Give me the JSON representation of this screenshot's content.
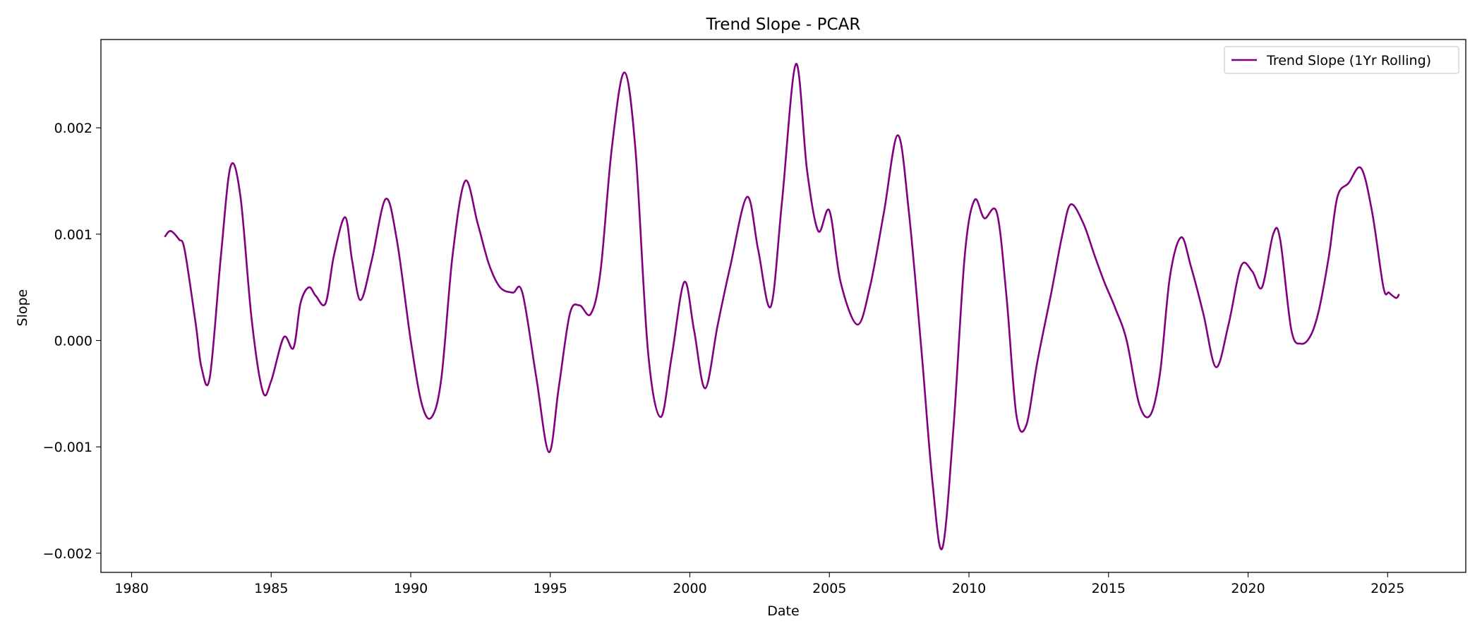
{
  "chart_data": {
    "type": "line",
    "title": "Trend Slope - PCAR",
    "xlabel": "Date",
    "ylabel": "Slope",
    "xlim": [
      1978.9,
      2027.8
    ],
    "ylim": [
      -0.00218,
      0.00283
    ],
    "grid": false,
    "legend_position": "top-right",
    "x_ticks": [
      1980,
      1985,
      1990,
      1995,
      2000,
      2005,
      2010,
      2015,
      2020,
      2025
    ],
    "x_tick_labels": [
      "1980",
      "1985",
      "1990",
      "1995",
      "2000",
      "2005",
      "2010",
      "2015",
      "2020",
      "2025"
    ],
    "y_ticks": [
      -0.002,
      -0.001,
      0.0,
      0.001,
      0.002
    ],
    "y_tick_labels": [
      "−0.002",
      "−0.001",
      "0.000",
      "0.001",
      "0.002"
    ],
    "series": [
      {
        "name": "Trend Slope (1Yr Rolling)",
        "color": "#800080",
        "x": [
          1981.2,
          1981.4,
          1981.7,
          1981.9,
          1982.3,
          1982.5,
          1982.8,
          1983.2,
          1983.55,
          1983.9,
          1984.3,
          1984.7,
          1985.0,
          1985.45,
          1985.8,
          1986.05,
          1986.35,
          1986.6,
          1986.95,
          1987.25,
          1987.65,
          1987.9,
          1988.2,
          1988.6,
          1989.1,
          1989.5,
          1990.0,
          1990.4,
          1990.75,
          1991.1,
          1991.5,
          1991.95,
          1992.4,
          1992.8,
          1993.2,
          1993.65,
          1994.0,
          1994.5,
          1994.95,
          1995.3,
          1995.7,
          1996.05,
          1996.45,
          1996.8,
          1997.2,
          1997.65,
          1998.05,
          1998.5,
          1998.95,
          1999.35,
          1999.8,
          2000.15,
          2000.55,
          2001.0,
          2001.45,
          2002.05,
          2002.45,
          2002.9,
          2003.3,
          2003.8,
          2004.2,
          2004.6,
          2005.0,
          2005.4,
          2006.0,
          2006.45,
          2006.95,
          2007.45,
          2007.85,
          2008.3,
          2008.7,
          2009.05,
          2009.45,
          2009.85,
          2010.2,
          2010.55,
          2011.0,
          2011.35,
          2011.7,
          2012.05,
          2012.45,
          2012.95,
          2013.35,
          2013.65,
          2014.1,
          2014.5,
          2014.85,
          2015.25,
          2015.65,
          2016.1,
          2016.5,
          2016.85,
          2017.2,
          2017.6,
          2017.95,
          2018.4,
          2018.85,
          2019.3,
          2019.75,
          2020.15,
          2020.5,
          2020.9,
          2021.15,
          2021.55,
          2021.9,
          2022.25,
          2022.55,
          2022.9,
          2023.2,
          2023.6,
          2024.05,
          2024.45,
          2024.85,
          2025.05,
          2025.3,
          2025.4
        ],
        "y": [
          0.00098,
          0.00103,
          0.00095,
          0.00085,
          0.00015,
          -0.00025,
          -0.00035,
          0.0008,
          0.00164,
          0.00135,
          0.0002,
          -0.00048,
          -0.00038,
          3e-05,
          -7e-05,
          0.00035,
          0.0005,
          0.00042,
          0.00035,
          0.0008,
          0.00116,
          0.00075,
          0.00038,
          0.00075,
          0.00133,
          0.00095,
          0.0,
          -0.0006,
          -0.00072,
          -0.00035,
          0.0008,
          0.0015,
          0.0011,
          0.00072,
          0.0005,
          0.00045,
          0.00045,
          -0.00035,
          -0.00105,
          -0.00045,
          0.00025,
          0.00033,
          0.00025,
          0.00065,
          0.0018,
          0.00252,
          0.0018,
          -0.0001,
          -0.00072,
          -0.00015,
          0.00055,
          0.0001,
          -0.00045,
          0.00015,
          0.0007,
          0.00135,
          0.00085,
          0.00032,
          0.0013,
          0.0026,
          0.0016,
          0.00103,
          0.00122,
          0.00055,
          0.00015,
          0.0005,
          0.0012,
          0.00193,
          0.0012,
          -0.0001,
          -0.00135,
          -0.00195,
          -0.0008,
          0.0008,
          0.00132,
          0.00115,
          0.0012,
          0.0004,
          -0.0007,
          -0.0008,
          -0.0002,
          0.00045,
          0.001,
          0.00128,
          0.0011,
          0.0008,
          0.00055,
          0.0003,
          0.0,
          -0.0006,
          -0.0007,
          -0.0003,
          0.0006,
          0.00097,
          0.0007,
          0.00025,
          -0.00025,
          0.00015,
          0.0007,
          0.00065,
          0.0005,
          0.001,
          0.00095,
          0.0001,
          -3e-05,
          5e-05,
          0.0003,
          0.0008,
          0.00135,
          0.00148,
          0.00162,
          0.0012,
          0.0005,
          0.00045,
          0.0004,
          0.00043
        ]
      }
    ]
  }
}
